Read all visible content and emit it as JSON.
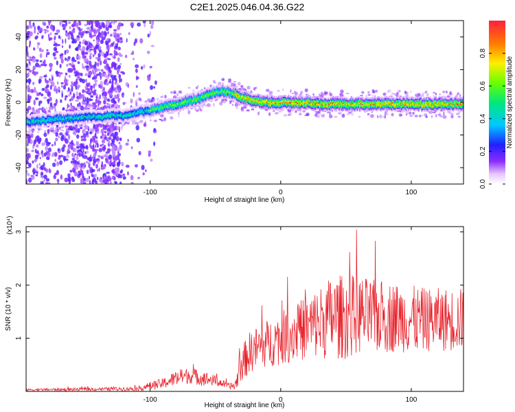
{
  "title": "C2E1.2025.046.04.36.G22",
  "chart_data": [
    {
      "type": "heatmap",
      "xlabel": "Height of straight line (km)",
      "ylabel": "Frequency (Hz)",
      "xlim": [
        -195,
        140
      ],
      "ylim": [
        -50,
        50
      ],
      "x_ticks": [
        -100,
        0,
        100
      ],
      "y_ticks": [
        40,
        20,
        0,
        -20,
        -40
      ],
      "grid": false,
      "colorbar": {
        "label": "Normalized spectral amplitude",
        "range": [
          0,
          1
        ],
        "ticks": [
          0.0,
          0.2,
          0.4,
          0.6,
          0.8
        ]
      },
      "ridge_line": {
        "x": [
          -195,
          -180,
          -170,
          -160,
          -150,
          -140,
          -130,
          -120,
          -110,
          -100,
          -90,
          -80,
          -70,
          -60,
          -55,
          -50,
          -45,
          -40,
          -35,
          -30,
          -20,
          -10,
          0,
          10,
          20,
          30,
          40,
          50,
          60,
          70,
          80,
          90,
          100,
          110,
          120,
          130,
          140
        ],
        "y": [
          -12,
          -11,
          -10,
          -10,
          -9,
          -9,
          -8,
          -8,
          -6,
          -5,
          -3,
          -1,
          1,
          3,
          5,
          6,
          7,
          6,
          5,
          3,
          1,
          0,
          0,
          0,
          0,
          -1,
          -1,
          -1,
          -1,
          -1,
          -1,
          -1,
          -1,
          -1,
          -1,
          -1,
          -1
        ]
      }
    },
    {
      "type": "line",
      "xlabel": "Height of straight line (km)",
      "ylabel": "SNR (10 * v/v)",
      "y_multiplier": "(x10⁴)",
      "xlim": [
        -195,
        140
      ],
      "ylim": [
        0,
        3.1
      ],
      "x_ticks": [
        -100,
        0,
        100
      ],
      "y_ticks": [
        1,
        2,
        3
      ],
      "color": "#e8232c",
      "envelope": {
        "x": [
          -195,
          -150,
          -110,
          -100,
          -90,
          -80,
          -70,
          -60,
          -50,
          -40,
          -35,
          -30,
          -25,
          -20,
          -10,
          0,
          10,
          20,
          30,
          40,
          50,
          60,
          70,
          80,
          90,
          100,
          110,
          120,
          130,
          140
        ],
        "y_mean": [
          0.03,
          0.04,
          0.05,
          0.1,
          0.15,
          0.25,
          0.3,
          0.25,
          0.2,
          0.1,
          0.1,
          0.5,
          0.7,
          0.8,
          0.9,
          1.0,
          1.1,
          1.2,
          1.3,
          1.4,
          1.4,
          1.45,
          1.4,
          1.4,
          1.4,
          1.35,
          1.35,
          1.35,
          1.35,
          1.35
        ],
        "y_spread": [
          0.02,
          0.03,
          0.04,
          0.08,
          0.1,
          0.15,
          0.15,
          0.15,
          0.1,
          0.05,
          0.1,
          0.3,
          0.4,
          0.4,
          0.45,
          0.5,
          0.55,
          0.6,
          0.7,
          0.8,
          0.8,
          0.75,
          0.7,
          0.7,
          0.65,
          0.65,
          0.6,
          0.6,
          0.6,
          0.6
        ]
      }
    }
  ]
}
